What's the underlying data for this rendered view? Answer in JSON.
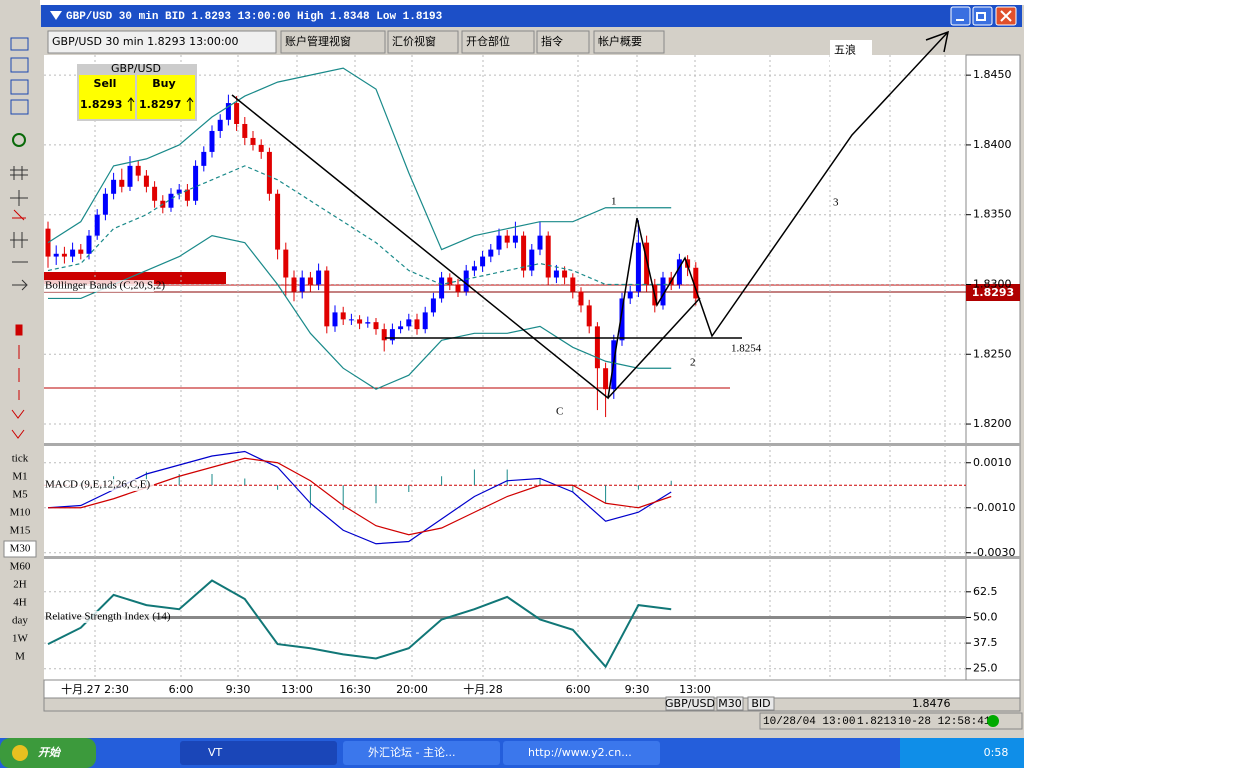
{
  "window": {
    "title": "GBP/USD 30 min BID 1.8293 13:00:00 High 1.8348 Low 1.8193"
  },
  "tabs": [
    "GBP/USD 30 min 1.8293 13:00:00",
    "账户管理视窗",
    "汇价视窗",
    "开仓部位",
    "指令",
    "帐户概要"
  ],
  "quote": {
    "symbol": "GBP/USD",
    "sell_label": "Sell",
    "buy_label": "Buy",
    "sell": "1.8293",
    "buy": "1.8297"
  },
  "left_toolbar": [
    "tick",
    "M1",
    "M5",
    "M10",
    "M15",
    "M30",
    "M60",
    "2H",
    "4H",
    "day",
    "1W",
    "M"
  ],
  "chart": {
    "price_ylim": [
      1.819,
      1.8463
    ],
    "price_ticks": [
      {
        "value": 1.845,
        "label": "1.8450"
      },
      {
        "value": 1.84,
        "label": "1.8400"
      },
      {
        "value": 1.835,
        "label": "1.8350"
      },
      {
        "value": 1.83,
        "label": "1.8300"
      },
      {
        "value": 1.825,
        "label": "1.8250"
      },
      {
        "value": 1.82,
        "label": "1.8200"
      }
    ],
    "price_tag": "1.8293",
    "up_color": "#0000ff",
    "down_color": "#e00000",
    "candles": [
      [
        1.834,
        1.8345,
        1.8312,
        1.832
      ],
      [
        1.832,
        1.8328,
        1.8314,
        1.8322
      ],
      [
        1.8322,
        1.8327,
        1.8315,
        1.832
      ],
      [
        1.832,
        1.833,
        1.8316,
        1.8325
      ],
      [
        1.8325,
        1.8329,
        1.8318,
        1.8322
      ],
      [
        1.8322,
        1.8339,
        1.8318,
        1.8335
      ],
      [
        1.8335,
        1.8354,
        1.8332,
        1.835
      ],
      [
        1.835,
        1.8369,
        1.8346,
        1.8365
      ],
      [
        1.8365,
        1.838,
        1.8361,
        1.8375
      ],
      [
        1.8375,
        1.8383,
        1.8366,
        1.837
      ],
      [
        1.837,
        1.8392,
        1.8367,
        1.8385
      ],
      [
        1.8385,
        1.8389,
        1.8374,
        1.8378
      ],
      [
        1.8378,
        1.8382,
        1.8366,
        1.837
      ],
      [
        1.837,
        1.8374,
        1.8355,
        1.836
      ],
      [
        1.836,
        1.8364,
        1.8351,
        1.8355
      ],
      [
        1.8355,
        1.8369,
        1.8352,
        1.8365
      ],
      [
        1.8365,
        1.8372,
        1.8361,
        1.8368
      ],
      [
        1.8368,
        1.8372,
        1.8356,
        1.836
      ],
      [
        1.836,
        1.8389,
        1.8357,
        1.8385
      ],
      [
        1.8385,
        1.8399,
        1.8381,
        1.8395
      ],
      [
        1.8395,
        1.8414,
        1.8391,
        1.841
      ],
      [
        1.841,
        1.8422,
        1.8405,
        1.8418
      ],
      [
        1.8418,
        1.8436,
        1.8414,
        1.843
      ],
      [
        1.843,
        1.8435,
        1.841,
        1.8415
      ],
      [
        1.8415,
        1.842,
        1.84,
        1.8405
      ],
      [
        1.8405,
        1.841,
        1.8396,
        1.84
      ],
      [
        1.84,
        1.8404,
        1.839,
        1.8395
      ],
      [
        1.8395,
        1.8398,
        1.836,
        1.8365
      ],
      [
        1.8365,
        1.8368,
        1.8318,
        1.8325
      ],
      [
        1.8325,
        1.833,
        1.8292,
        1.8305
      ],
      [
        1.8305,
        1.831,
        1.8288,
        1.8295
      ],
      [
        1.8295,
        1.831,
        1.829,
        1.8305
      ],
      [
        1.8305,
        1.8309,
        1.8295,
        1.83
      ],
      [
        1.83,
        1.8315,
        1.8296,
        1.831
      ],
      [
        1.831,
        1.8313,
        1.8265,
        1.827
      ],
      [
        1.827,
        1.8285,
        1.8266,
        1.828
      ],
      [
        1.828,
        1.8284,
        1.8271,
        1.8275
      ],
      [
        1.8275,
        1.8279,
        1.8271,
        1.8275
      ],
      [
        1.8275,
        1.8278,
        1.8268,
        1.8272
      ],
      [
        1.8272,
        1.8277,
        1.8269,
        1.8273
      ],
      [
        1.8273,
        1.8276,
        1.8264,
        1.8268
      ],
      [
        1.8268,
        1.8272,
        1.8252,
        1.826
      ],
      [
        1.826,
        1.8272,
        1.8257,
        1.8268
      ],
      [
        1.8268,
        1.8274,
        1.8265,
        1.827
      ],
      [
        1.827,
        1.8279,
        1.8267,
        1.8275
      ],
      [
        1.8275,
        1.8279,
        1.8264,
        1.8268
      ],
      [
        1.8268,
        1.8284,
        1.8265,
        1.828
      ],
      [
        1.828,
        1.8294,
        1.8277,
        1.829
      ],
      [
        1.829,
        1.8309,
        1.8287,
        1.8305
      ],
      [
        1.8305,
        1.8308,
        1.8296,
        1.83
      ],
      [
        1.83,
        1.8304,
        1.8291,
        1.8295
      ],
      [
        1.8295,
        1.8314,
        1.8292,
        1.831
      ],
      [
        1.831,
        1.8317,
        1.8306,
        1.8313
      ],
      [
        1.8313,
        1.8324,
        1.8309,
        1.832
      ],
      [
        1.832,
        1.8329,
        1.8316,
        1.8325
      ],
      [
        1.8325,
        1.834,
        1.8321,
        1.8335
      ],
      [
        1.8335,
        1.8339,
        1.8326,
        1.833
      ],
      [
        1.833,
        1.8345,
        1.8326,
        1.8335
      ],
      [
        1.8335,
        1.8338,
        1.8305,
        1.831
      ],
      [
        1.831,
        1.8329,
        1.8306,
        1.8325
      ],
      [
        1.8325,
        1.8345,
        1.8321,
        1.8335
      ],
      [
        1.8335,
        1.8338,
        1.83,
        1.8305
      ],
      [
        1.8305,
        1.8314,
        1.8301,
        1.831
      ],
      [
        1.831,
        1.8313,
        1.83,
        1.8305
      ],
      [
        1.8305,
        1.8308,
        1.829,
        1.8295
      ],
      [
        1.8295,
        1.8298,
        1.828,
        1.8285
      ],
      [
        1.8285,
        1.8289,
        1.8265,
        1.827
      ],
      [
        1.827,
        1.8273,
        1.821,
        1.824
      ],
      [
        1.824,
        1.8244,
        1.8205,
        1.8225
      ],
      [
        1.8225,
        1.8264,
        1.8218,
        1.826
      ],
      [
        1.826,
        1.8294,
        1.8256,
        1.829
      ],
      [
        1.829,
        1.8299,
        1.8286,
        1.8295
      ],
      [
        1.8295,
        1.8346,
        1.8291,
        1.833
      ],
      [
        1.833,
        1.8335,
        1.8295,
        1.83
      ],
      [
        1.83,
        1.8304,
        1.828,
        1.8285
      ],
      [
        1.8285,
        1.8309,
        1.8282,
        1.8305
      ],
      [
        1.8305,
        1.8309,
        1.8296,
        1.83
      ],
      [
        1.83,
        1.8322,
        1.8297,
        1.8318
      ],
      [
        1.8318,
        1.8321,
        1.8306,
        1.8312
      ],
      [
        1.8312,
        1.8316,
        1.8285,
        1.829
      ]
    ],
    "bollinger_label": "Bollinger Bands (C,20,S,2)",
    "bollinger_color": "#1a8a8a",
    "bollinger_upper": [
      1.833,
      1.8345,
      1.8385,
      1.839,
      1.84,
      1.842,
      1.8435,
      1.8445,
      1.845,
      1.8455,
      1.844,
      1.838,
      1.8325,
      1.8335,
      1.834,
      1.8345,
      1.8345,
      1.8355,
      1.8355,
      1.8355
    ],
    "bollinger_middle": [
      1.831,
      1.8315,
      1.834,
      1.835,
      1.8365,
      1.8375,
      1.8385,
      1.8375,
      1.836,
      1.8345,
      1.833,
      1.831,
      1.83,
      1.8305,
      1.831,
      1.8315,
      1.831,
      1.83,
      1.83,
      1.83
    ],
    "bollinger_lower": [
      1.829,
      1.829,
      1.83,
      1.831,
      1.832,
      1.8335,
      1.833,
      1.83,
      1.8265,
      1.824,
      1.8225,
      1.8235,
      1.826,
      1.8265,
      1.8265,
      1.827,
      1.8255,
      1.8245,
      1.824,
      1.824
    ],
    "macd_label": "MACD (9,E,12,26,C,E)",
    "macd_ylim": [
      -0.0031,
      0.0017
    ],
    "macd_ticks": [
      {
        "value": 0.001,
        "label": "0.0010"
      },
      {
        "value": -0.001,
        "label": "-0.0010"
      },
      {
        "value": -0.003,
        "label": "-0.0030"
      }
    ],
    "macd_line": [
      -0.001,
      -0.0009,
      -0.0002,
      0.0005,
      0.0009,
      0.0013,
      0.0015,
      0.0008,
      -0.0008,
      -0.002,
      -0.0026,
      -0.0025,
      -0.0015,
      -0.0005,
      0.0002,
      0.0003,
      -0.0003,
      -0.0016,
      -0.0012,
      -0.0003
    ],
    "macd_signal": [
      -0.001,
      -0.001,
      -0.0006,
      -0.0001,
      0.0004,
      0.0008,
      0.0012,
      0.001,
      0.0002,
      -0.0009,
      -0.0018,
      -0.0022,
      -0.0019,
      -0.0012,
      -0.0005,
      0,
      0,
      -0.0008,
      -0.001,
      -0.0005
    ],
    "rsi_label": "Relative Strength Index (14)",
    "rsi_ylim": [
      20,
      78
    ],
    "rsi_ticks": [
      62.5,
      {
        "value": 50,
        "label": "50.0"
      },
      37.5,
      {
        "value": 25,
        "label": "25.0"
      }
    ],
    "rsi": [
      37,
      45,
      61,
      56,
      54,
      68,
      59,
      37,
      35,
      32,
      30,
      35,
      49,
      54,
      60,
      49,
      44,
      26,
      56,
      54
    ],
    "x_labels": [
      "十月.27 2:30",
      "6:00",
      "9:30",
      "13:00",
      "16:30",
      "20:00",
      "十月.28",
      "6:00",
      "9:30",
      "13:00"
    ]
  },
  "annotations": {
    "wave5": "五浪",
    "p1": "1",
    "p2": "2",
    "p3": "3",
    "c": "C",
    "level": "1.8254"
  },
  "bottom_bar": {
    "symbol": "GBP/USD",
    "period": "M30",
    "side": "BID",
    "price": "1.8476"
  },
  "status": {
    "date": "10/28/04 13:00",
    "price": "1.8213",
    "clock": "10-28 12:58:41"
  },
  "taskbar": {
    "start": "开始",
    "items": [
      "VT",
      "外汇论坛 - 主论...",
      "http://www.y2.cn..."
    ],
    "time": "0:58"
  }
}
